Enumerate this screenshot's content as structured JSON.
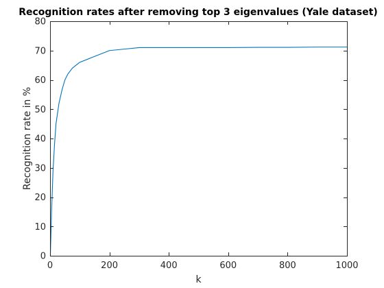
{
  "chart_data": {
    "type": "line",
    "title": "Recognition rates after removing top 3 eigenvalues (Yale dataset)",
    "xlabel": "k",
    "ylabel": "Recognition rate in %",
    "xlim": [
      0,
      1000
    ],
    "ylim": [
      0,
      80
    ],
    "xticks": [
      0,
      200,
      400,
      600,
      800,
      1000
    ],
    "yticks": [
      0,
      10,
      20,
      30,
      40,
      50,
      60,
      70,
      80
    ],
    "grid": false,
    "series": [
      {
        "color": "#0072bd",
        "x": [
          1,
          5,
          10,
          15,
          20,
          30,
          40,
          50,
          60,
          75,
          100,
          150,
          200,
          250,
          300,
          400,
          500,
          600,
          700,
          800,
          900,
          1000
        ],
        "y": [
          0,
          15,
          29,
          38,
          45,
          52,
          56.5,
          60,
          62,
          64,
          66,
          68,
          70,
          70.5,
          71,
          71,
          71,
          71,
          71.1,
          71.1,
          71.2,
          71.2
        ]
      }
    ]
  }
}
